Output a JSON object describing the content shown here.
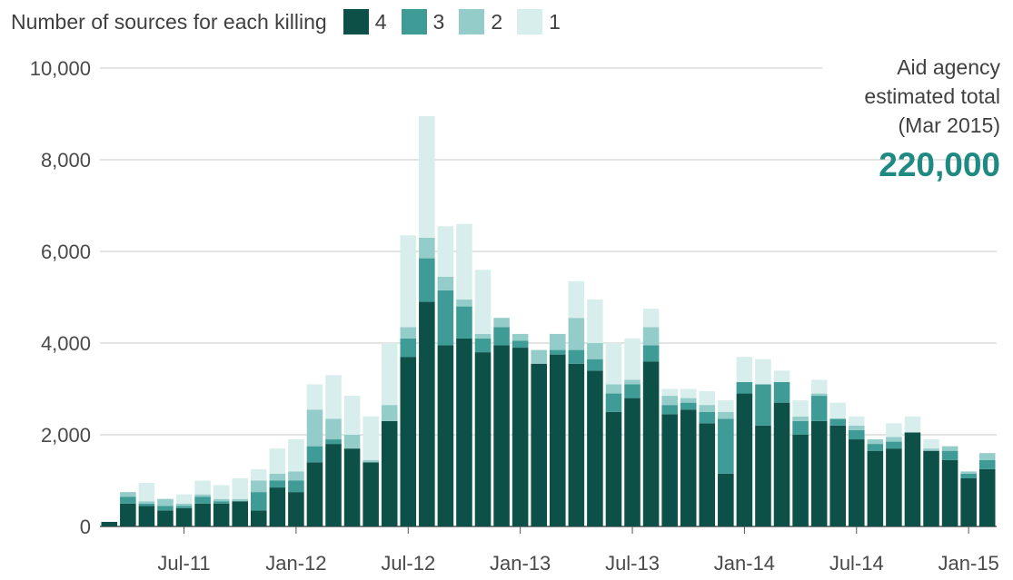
{
  "legend": {
    "title": "Number of sources for each killing",
    "items": [
      {
        "label": "4",
        "color": "#0d5048"
      },
      {
        "label": "3",
        "color": "#3e9b95"
      },
      {
        "label": "2",
        "color": "#93ccc9"
      },
      {
        "label": "1",
        "color": "#d7eeec"
      }
    ]
  },
  "callout": {
    "line1": "Aid agency",
    "line2": "estimated total",
    "line3": "(Mar 2015)",
    "value": "220,000"
  },
  "chart_data": {
    "type": "bar",
    "stacked": true,
    "title": "",
    "xlabel": "",
    "ylabel": "",
    "ylim": [
      0,
      10000
    ],
    "yticks": [
      0,
      2000,
      4000,
      6000,
      8000,
      10000
    ],
    "ytick_labels": [
      "0",
      "2,000",
      "4,000",
      "6,000",
      "8,000",
      "10,000"
    ],
    "grid": true,
    "legend_position": "top",
    "categories": [
      "Mar-11",
      "Apr-11",
      "May-11",
      "Jun-11",
      "Jul-11",
      "Aug-11",
      "Sep-11",
      "Oct-11",
      "Nov-11",
      "Dec-11",
      "Jan-12",
      "Feb-12",
      "Mar-12",
      "Apr-12",
      "May-12",
      "Jun-12",
      "Jul-12",
      "Aug-12",
      "Sep-12",
      "Oct-12",
      "Nov-12",
      "Dec-12",
      "Jan-13",
      "Feb-13",
      "Mar-13",
      "Apr-13",
      "May-13",
      "Jun-13",
      "Jul-13",
      "Aug-13",
      "Sep-13",
      "Oct-13",
      "Nov-13",
      "Dec-13",
      "Jan-14",
      "Feb-14",
      "Mar-14",
      "Apr-14",
      "May-14",
      "Jun-14",
      "Jul-14",
      "Aug-14",
      "Sep-14",
      "Oct-14",
      "Nov-14",
      "Dec-14",
      "Jan-15",
      "Feb-15"
    ],
    "xtick_labels": [
      {
        "label": "Jul-11",
        "index": 4
      },
      {
        "label": "Jan-12",
        "index": 10
      },
      {
        "label": "Jul-12",
        "index": 16
      },
      {
        "label": "Jan-13",
        "index": 22
      },
      {
        "label": "Jul-13",
        "index": 28
      },
      {
        "label": "Jan-14",
        "index": 34
      },
      {
        "label": "Jul-14",
        "index": 40
      },
      {
        "label": "Jan-15",
        "index": 46
      }
    ],
    "series": [
      {
        "name": "4",
        "values": [
          100,
          500,
          450,
          350,
          400,
          500,
          500,
          550,
          350,
          850,
          750,
          1400,
          1800,
          1700,
          1400,
          2300,
          3700,
          4900,
          3950,
          4100,
          3800,
          3950,
          3900,
          3550,
          3750,
          3550,
          3400,
          2500,
          2800,
          3600,
          2450,
          2550,
          2250,
          1150,
          2900,
          2200,
          2700,
          2000,
          2300,
          2200,
          1900,
          1650,
          1700,
          2050,
          1650,
          1450,
          1050,
          1250
        ]
      },
      {
        "name": "3",
        "values": [
          0,
          150,
          50,
          100,
          50,
          150,
          50,
          0,
          400,
          150,
          250,
          350,
          100,
          0,
          0,
          0,
          400,
          950,
          1200,
          700,
          300,
          400,
          150,
          0,
          100,
          300,
          250,
          400,
          300,
          350,
          200,
          150,
          250,
          1200,
          250,
          900,
          450,
          300,
          550,
          150,
          200,
          150,
          150,
          0,
          0,
          200,
          100,
          200
        ]
      },
      {
        "name": "2",
        "values": [
          0,
          100,
          50,
          150,
          50,
          50,
          50,
          50,
          250,
          150,
          200,
          800,
          450,
          300,
          50,
          350,
          250,
          450,
          300,
          150,
          100,
          200,
          150,
          300,
          350,
          700,
          350,
          200,
          100,
          400,
          200,
          100,
          150,
          150,
          0,
          0,
          0,
          100,
          50,
          0,
          100,
          100,
          100,
          0,
          50,
          100,
          50,
          150
        ]
      },
      {
        "name": "1",
        "values": [
          0,
          0,
          400,
          0,
          200,
          300,
          300,
          450,
          250,
          550,
          700,
          550,
          950,
          850,
          950,
          1350,
          2000,
          2650,
          1100,
          1650,
          1400,
          0,
          0,
          0,
          0,
          800,
          950,
          900,
          900,
          400,
          150,
          200,
          300,
          250,
          550,
          550,
          250,
          350,
          300,
          350,
          200,
          0,
          300,
          350,
          200,
          0,
          0,
          0
        ]
      }
    ]
  }
}
